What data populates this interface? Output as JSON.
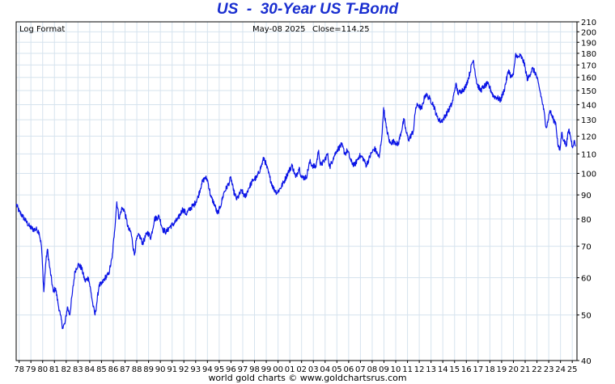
{
  "title": "US  -  30-Year US T-Bond",
  "footer": "world gold charts © www.goldchartsrus.com",
  "chart_data": {
    "type": "line",
    "scale": "log",
    "scale_label": "Log Format",
    "date_label": "May-08  2025",
    "close_label": "Close=114.25",
    "ylim": [
      40,
      210
    ],
    "yticks": [
      40,
      50,
      60,
      70,
      80,
      90,
      100,
      110,
      120,
      130,
      140,
      150,
      160,
      170,
      180,
      190,
      200,
      210
    ],
    "xlim": [
      1977.75,
      2025.4
    ],
    "xticks": [
      {
        "year": 1978,
        "label": "78"
      },
      {
        "year": 1979,
        "label": "79"
      },
      {
        "year": 1980,
        "label": "80"
      },
      {
        "year": 1981,
        "label": "81"
      },
      {
        "year": 1982,
        "label": "82"
      },
      {
        "year": 1983,
        "label": "83"
      },
      {
        "year": 1984,
        "label": "84"
      },
      {
        "year": 1985,
        "label": "85"
      },
      {
        "year": 1986,
        "label": "86"
      },
      {
        "year": 1987,
        "label": "87"
      },
      {
        "year": 1988,
        "label": "88"
      },
      {
        "year": 1989,
        "label": "89"
      },
      {
        "year": 1990,
        "label": "90"
      },
      {
        "year": 1991,
        "label": "91"
      },
      {
        "year": 1992,
        "label": "92"
      },
      {
        "year": 1993,
        "label": "93"
      },
      {
        "year": 1994,
        "label": "94"
      },
      {
        "year": 1995,
        "label": "95"
      },
      {
        "year": 1996,
        "label": "96"
      },
      {
        "year": 1997,
        "label": "97"
      },
      {
        "year": 1998,
        "label": "98"
      },
      {
        "year": 1999,
        "label": "99"
      },
      {
        "year": 2000,
        "label": "00"
      },
      {
        "year": 2001,
        "label": "01"
      },
      {
        "year": 2002,
        "label": "02"
      },
      {
        "year": 2003,
        "label": "03"
      },
      {
        "year": 2004,
        "label": "04"
      },
      {
        "year": 2005,
        "label": "05"
      },
      {
        "year": 2006,
        "label": "06"
      },
      {
        "year": 2007,
        "label": "07"
      },
      {
        "year": 2008,
        "label": "08"
      },
      {
        "year": 2009,
        "label": "09"
      },
      {
        "year": 2010,
        "label": "10"
      },
      {
        "year": 2011,
        "label": "11"
      },
      {
        "year": 2012,
        "label": "12"
      },
      {
        "year": 2013,
        "label": "13"
      },
      {
        "year": 2014,
        "label": "14"
      },
      {
        "year": 2015,
        "label": "15"
      },
      {
        "year": 2016,
        "label": "16"
      },
      {
        "year": 2017,
        "label": "17"
      },
      {
        "year": 2018,
        "label": "18"
      },
      {
        "year": 2019,
        "label": "19"
      },
      {
        "year": 2020,
        "label": "20"
      },
      {
        "year": 2021,
        "label": "21"
      },
      {
        "year": 2022,
        "label": "22"
      },
      {
        "year": 2023,
        "label": "23"
      },
      {
        "year": 2024,
        "label": "24"
      },
      {
        "year": 2025,
        "label": "25"
      }
    ],
    "grid": true,
    "line_color": "#0a14e6",
    "series": [
      {
        "points": [
          [
            1977.75,
            86
          ],
          [
            1978.0,
            83
          ],
          [
            1978.3,
            81
          ],
          [
            1978.6,
            79
          ],
          [
            1978.9,
            77
          ],
          [
            1979.2,
            76
          ],
          [
            1979.5,
            76
          ],
          [
            1979.7,
            75
          ],
          [
            1979.9,
            70
          ],
          [
            1980.1,
            56
          ],
          [
            1980.25,
            64
          ],
          [
            1980.4,
            69
          ],
          [
            1980.6,
            63
          ],
          [
            1980.9,
            56
          ],
          [
            1981.1,
            57
          ],
          [
            1981.3,
            53
          ],
          [
            1981.5,
            50
          ],
          [
            1981.7,
            47
          ],
          [
            1981.9,
            48
          ],
          [
            1982.1,
            52
          ],
          [
            1982.3,
            50
          ],
          [
            1982.5,
            55
          ],
          [
            1982.75,
            62
          ],
          [
            1983.0,
            64
          ],
          [
            1983.3,
            63
          ],
          [
            1983.6,
            59
          ],
          [
            1983.9,
            60
          ],
          [
            1984.1,
            56
          ],
          [
            1984.3,
            52
          ],
          [
            1984.45,
            50
          ],
          [
            1984.6,
            53
          ],
          [
            1984.8,
            58
          ],
          [
            1985.0,
            58
          ],
          [
            1985.3,
            60
          ],
          [
            1985.6,
            61
          ],
          [
            1985.9,
            66
          ],
          [
            1986.1,
            75
          ],
          [
            1986.3,
            87
          ],
          [
            1986.5,
            80
          ],
          [
            1986.7,
            84
          ],
          [
            1986.9,
            84
          ],
          [
            1987.1,
            80
          ],
          [
            1987.3,
            76
          ],
          [
            1987.5,
            75
          ],
          [
            1987.8,
            67
          ],
          [
            1987.95,
            72
          ],
          [
            1988.2,
            74
          ],
          [
            1988.5,
            71
          ],
          [
            1988.9,
            75
          ],
          [
            1989.2,
            73
          ],
          [
            1989.5,
            80
          ],
          [
            1989.9,
            81
          ],
          [
            1990.2,
            76
          ],
          [
            1990.5,
            75
          ],
          [
            1990.8,
            77
          ],
          [
            1991.1,
            78
          ],
          [
            1991.5,
            80
          ],
          [
            1991.9,
            84
          ],
          [
            1992.2,
            82
          ],
          [
            1992.5,
            84
          ],
          [
            1992.9,
            86
          ],
          [
            1993.2,
            89
          ],
          [
            1993.5,
            95
          ],
          [
            1993.8,
            98
          ],
          [
            1994.0,
            97
          ],
          [
            1994.3,
            89
          ],
          [
            1994.6,
            86
          ],
          [
            1994.85,
            82
          ],
          [
            1995.1,
            85
          ],
          [
            1995.4,
            91
          ],
          [
            1995.8,
            95
          ],
          [
            1996.0,
            98
          ],
          [
            1996.2,
            92
          ],
          [
            1996.5,
            88
          ],
          [
            1996.9,
            92
          ],
          [
            1997.2,
            89
          ],
          [
            1997.5,
            93
          ],
          [
            1997.9,
            97
          ],
          [
            1998.2,
            98
          ],
          [
            1998.6,
            104
          ],
          [
            1998.8,
            108
          ],
          [
            1999.0,
            104
          ],
          [
            1999.3,
            98
          ],
          [
            1999.6,
            93
          ],
          [
            1999.9,
            91
          ],
          [
            2000.2,
            93
          ],
          [
            2000.5,
            96
          ],
          [
            2000.9,
            101
          ],
          [
            2001.2,
            104
          ],
          [
            2001.5,
            98
          ],
          [
            2001.8,
            103
          ],
          [
            2002.0,
            98
          ],
          [
            2002.4,
            98
          ],
          [
            2002.7,
            106
          ],
          [
            2002.9,
            104
          ],
          [
            2003.2,
            103
          ],
          [
            2003.45,
            112
          ],
          [
            2003.6,
            104
          ],
          [
            2003.9,
            106
          ],
          [
            2004.2,
            110
          ],
          [
            2004.4,
            103
          ],
          [
            2004.7,
            108
          ],
          [
            2005.0,
            112
          ],
          [
            2005.4,
            115
          ],
          [
            2005.7,
            110
          ],
          [
            2005.9,
            112
          ],
          [
            2006.2,
            106
          ],
          [
            2006.5,
            104
          ],
          [
            2006.9,
            109
          ],
          [
            2007.2,
            108
          ],
          [
            2007.5,
            104
          ],
          [
            2007.9,
            110
          ],
          [
            2008.2,
            113
          ],
          [
            2008.6,
            108
          ],
          [
            2008.85,
            122
          ],
          [
            2008.97,
            138
          ],
          [
            2009.2,
            125
          ],
          [
            2009.5,
            116
          ],
          [
            2009.9,
            117
          ],
          [
            2010.2,
            115
          ],
          [
            2010.7,
            130
          ],
          [
            2010.9,
            122
          ],
          [
            2011.1,
            118
          ],
          [
            2011.5,
            123
          ],
          [
            2011.7,
            138
          ],
          [
            2011.9,
            140
          ],
          [
            2012.2,
            137
          ],
          [
            2012.5,
            147
          ],
          [
            2012.7,
            146
          ],
          [
            2012.9,
            144
          ],
          [
            2013.2,
            140
          ],
          [
            2013.5,
            132
          ],
          [
            2013.8,
            129
          ],
          [
            2014.0,
            130
          ],
          [
            2014.4,
            135
          ],
          [
            2014.8,
            141
          ],
          [
            2015.0,
            150
          ],
          [
            2015.1,
            155
          ],
          [
            2015.3,
            148
          ],
          [
            2015.6,
            150
          ],
          [
            2015.9,
            152
          ],
          [
            2016.2,
            160
          ],
          [
            2016.5,
            172
          ],
          [
            2016.6,
            174
          ],
          [
            2016.9,
            155
          ],
          [
            2017.2,
            150
          ],
          [
            2017.5,
            153
          ],
          [
            2017.8,
            155
          ],
          [
            2018.0,
            152
          ],
          [
            2018.3,
            146
          ],
          [
            2018.6,
            145
          ],
          [
            2018.9,
            143
          ],
          [
            2019.2,
            150
          ],
          [
            2019.6,
            166
          ],
          [
            2019.8,
            160
          ],
          [
            2020.0,
            162
          ],
          [
            2020.2,
            180
          ],
          [
            2020.35,
            176
          ],
          [
            2020.6,
            178
          ],
          [
            2020.9,
            172
          ],
          [
            2021.2,
            158
          ],
          [
            2021.6,
            167
          ],
          [
            2021.9,
            163
          ],
          [
            2022.2,
            152
          ],
          [
            2022.5,
            140
          ],
          [
            2022.8,
            125
          ],
          [
            2022.95,
            130
          ],
          [
            2023.1,
            136
          ],
          [
            2023.4,
            130
          ],
          [
            2023.6,
            128
          ],
          [
            2023.8,
            114
          ],
          [
            2023.95,
            112
          ],
          [
            2024.1,
            122
          ],
          [
            2024.3,
            117
          ],
          [
            2024.5,
            115
          ],
          [
            2024.7,
            124
          ],
          [
            2024.85,
            120
          ],
          [
            2025.0,
            114
          ],
          [
            2025.15,
            117
          ],
          [
            2025.3,
            114.25
          ]
        ]
      }
    ]
  }
}
